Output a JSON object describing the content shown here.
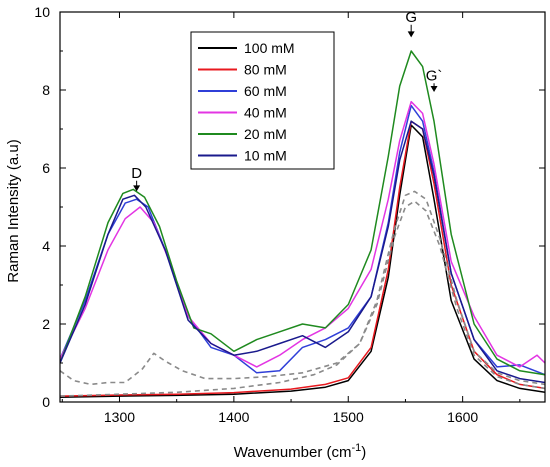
{
  "chart_data": {
    "type": "line",
    "xlabel": "Wavenumber (cm",
    "xlabel_sup": "-1",
    "xlabel_close": ")",
    "ylabel": "Raman Intensity (a.u)",
    "xlim": [
      1248,
      1672
    ],
    "ylim": [
      0,
      10
    ],
    "x_ticks": [
      1300,
      1400,
      1500,
      1600
    ],
    "y_ticks": [
      0,
      2,
      4,
      6,
      8,
      10
    ],
    "grid": false,
    "legend_position": "top-center",
    "annotations": [
      {
        "text": "D",
        "x": 1315,
        "y": 5.75,
        "arrow_to": 5.4
      },
      {
        "text": "G",
        "x": 1555,
        "y": 9.75,
        "arrow_to": 9.35
      },
      {
        "text": "G`",
        "x": 1575,
        "y": 8.25,
        "arrow_to": 7.95
      }
    ],
    "series": [
      {
        "name": "100 mM",
        "color": "#000000",
        "x": [
          1248,
          1300,
          1350,
          1400,
          1450,
          1480,
          1500,
          1520,
          1535,
          1545,
          1555,
          1565,
          1575,
          1590,
          1610,
          1630,
          1650,
          1672
        ],
        "y": [
          0.12,
          0.15,
          0.17,
          0.2,
          0.28,
          0.38,
          0.55,
          1.3,
          3.2,
          5.3,
          7.1,
          6.8,
          5.2,
          2.6,
          1.1,
          0.55,
          0.35,
          0.25
        ]
      },
      {
        "name": "80 mM",
        "color": "#e8191f",
        "x": [
          1248,
          1300,
          1350,
          1400,
          1450,
          1480,
          1500,
          1520,
          1535,
          1545,
          1555,
          1565,
          1575,
          1590,
          1610,
          1630,
          1650,
          1672
        ],
        "y": [
          0.15,
          0.18,
          0.2,
          0.24,
          0.33,
          0.45,
          0.62,
          1.4,
          3.4,
          5.5,
          7.2,
          7.0,
          5.6,
          3.0,
          1.3,
          0.7,
          0.45,
          0.35
        ]
      },
      {
        "name": "60 mM",
        "color": "#2f3fd8",
        "x": [
          1248,
          1270,
          1290,
          1305,
          1315,
          1325,
          1340,
          1360,
          1380,
          1400,
          1420,
          1440,
          1460,
          1480,
          1500,
          1520,
          1535,
          1545,
          1555,
          1565,
          1575,
          1590,
          1610,
          1630,
          1650,
          1672
        ],
        "y": [
          1.1,
          2.6,
          4.3,
          5.1,
          5.2,
          5.0,
          3.9,
          2.2,
          1.4,
          1.2,
          0.75,
          0.8,
          1.4,
          1.6,
          1.9,
          2.7,
          4.6,
          6.4,
          7.6,
          7.2,
          5.9,
          3.3,
          1.6,
          0.9,
          0.95,
          0.7
        ]
      },
      {
        "name": "40 mM",
        "color": "#e335e3",
        "x": [
          1248,
          1270,
          1290,
          1305,
          1318,
          1330,
          1345,
          1360,
          1380,
          1400,
          1420,
          1440,
          1460,
          1480,
          1500,
          1520,
          1535,
          1545,
          1555,
          1565,
          1575,
          1590,
          1610,
          1630,
          1650,
          1665,
          1672
        ],
        "y": [
          1.1,
          2.4,
          3.9,
          4.7,
          5.0,
          4.6,
          3.5,
          2.2,
          1.5,
          1.2,
          0.9,
          1.2,
          1.6,
          1.9,
          2.4,
          3.4,
          5.2,
          6.7,
          7.7,
          7.4,
          6.1,
          3.6,
          2.2,
          1.2,
          0.9,
          1.2,
          1.0
        ]
      },
      {
        "name": "20 mM",
        "color": "#1f8a1f",
        "x": [
          1248,
          1270,
          1290,
          1303,
          1312,
          1322,
          1335,
          1350,
          1365,
          1380,
          1400,
          1420,
          1440,
          1460,
          1480,
          1500,
          1520,
          1535,
          1545,
          1555,
          1565,
          1575,
          1590,
          1610,
          1630,
          1650,
          1672
        ],
        "y": [
          1.0,
          2.7,
          4.6,
          5.35,
          5.45,
          5.25,
          4.5,
          3.1,
          1.9,
          1.75,
          1.3,
          1.6,
          1.8,
          2.0,
          1.9,
          2.5,
          3.9,
          6.3,
          8.1,
          9.0,
          8.6,
          7.2,
          4.3,
          2.0,
          1.1,
          0.8,
          0.7
        ]
      },
      {
        "name": "10 mM",
        "color": "#1a1a8c",
        "x": [
          1248,
          1270,
          1290,
          1303,
          1313,
          1323,
          1340,
          1360,
          1380,
          1400,
          1420,
          1440,
          1460,
          1480,
          1500,
          1520,
          1535,
          1545,
          1555,
          1565,
          1575,
          1590,
          1610,
          1630,
          1650,
          1672
        ],
        "y": [
          1.0,
          2.5,
          4.3,
          5.2,
          5.3,
          5.0,
          3.9,
          2.1,
          1.5,
          1.2,
          1.3,
          1.5,
          1.7,
          1.4,
          1.8,
          2.7,
          4.5,
          6.2,
          7.2,
          7.0,
          5.8,
          3.3,
          1.6,
          0.8,
          0.6,
          0.5
        ]
      },
      {
        "name": "",
        "color": "#8a8a8a",
        "dashed": true,
        "x": [
          1248,
          1260,
          1275,
          1290,
          1305,
          1320,
          1330,
          1340,
          1355,
          1375,
          1400,
          1430,
          1460,
          1490,
          1510,
          1525,
          1540,
          1550,
          1558,
          1568,
          1580,
          1595,
          1610,
          1630,
          1650,
          1672
        ],
        "y": [
          0.8,
          0.55,
          0.45,
          0.5,
          0.5,
          0.85,
          1.25,
          1.05,
          0.8,
          0.6,
          0.6,
          0.65,
          0.75,
          1.0,
          1.5,
          2.6,
          4.4,
          5.3,
          5.4,
          5.2,
          4.2,
          2.6,
          1.3,
          0.75,
          0.55,
          0.45
        ]
      },
      {
        "name": "",
        "color": "#8a8a8a",
        "dashed": true,
        "x": [
          1248,
          1300,
          1350,
          1400,
          1440,
          1470,
          1490,
          1510,
          1525,
          1540,
          1550,
          1558,
          1568,
          1580,
          1595,
          1610,
          1630,
          1650,
          1672
        ],
        "y": [
          0.15,
          0.2,
          0.25,
          0.35,
          0.5,
          0.7,
          0.95,
          1.5,
          2.5,
          4.2,
          5.0,
          5.15,
          4.9,
          4.0,
          2.4,
          1.2,
          0.65,
          0.45,
          0.35
        ]
      }
    ]
  }
}
